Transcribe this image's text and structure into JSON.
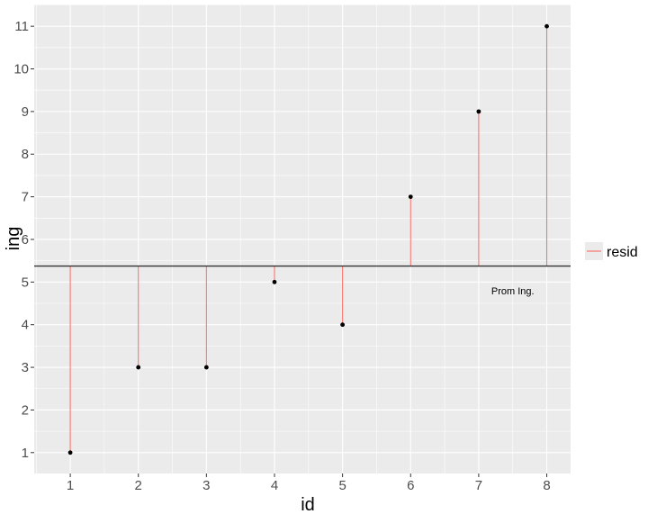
{
  "chart_data": {
    "type": "scatter",
    "x": [
      1,
      2,
      3,
      4,
      5,
      6,
      7,
      8
    ],
    "y": [
      1,
      3,
      3,
      5,
      4,
      7,
      9,
      11
    ],
    "hline": 5.375,
    "segments_to": "hline",
    "xlabel": "id",
    "ylabel": "ing",
    "xlim": [
      0.47,
      8.35
    ],
    "ylim": [
      0.51,
      11.51
    ],
    "xticks": [
      "1",
      "2",
      "3",
      "4",
      "5",
      "6",
      "7",
      "8"
    ],
    "yticks": [
      "1",
      "2",
      "3",
      "4",
      "5",
      "6",
      "7",
      "8",
      "9",
      "10",
      "11"
    ],
    "annotation": {
      "text": "Prom Ing.",
      "x": 7.5,
      "y": 4.8
    },
    "legend": {
      "entries": [
        "resid"
      ],
      "placement": "right"
    },
    "grid": true,
    "colors": {
      "segment": "#F8766D",
      "point": "#000000",
      "hline": "#333333",
      "panel": "#EBEBEB",
      "grid": "#FFFFFF"
    }
  }
}
